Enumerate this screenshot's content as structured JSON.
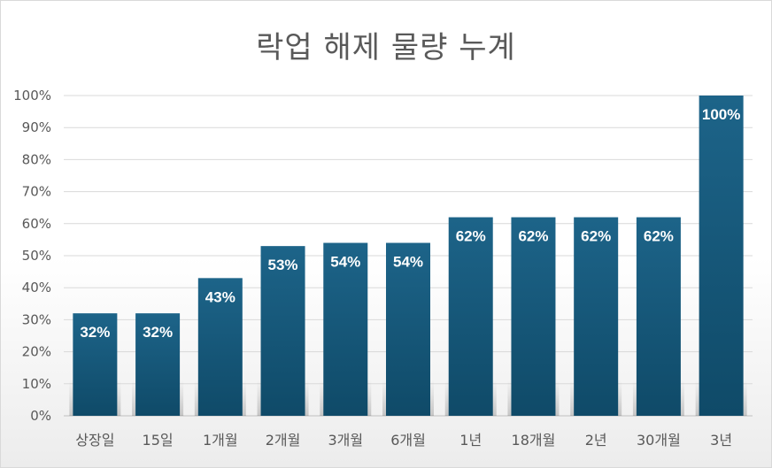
{
  "chart_data": {
    "type": "bar",
    "title": "락업 해제 물량 누계",
    "categories": [
      "상장일",
      "15일",
      "1개월",
      "2개월",
      "3개월",
      "6개월",
      "1년",
      "18개월",
      "2년",
      "30개월",
      "3년"
    ],
    "values": [
      32,
      32,
      43,
      53,
      54,
      54,
      62,
      62,
      62,
      62,
      100
    ],
    "data_labels": [
      "32%",
      "32%",
      "43%",
      "53%",
      "54%",
      "54%",
      "62%",
      "62%",
      "62%",
      "62%",
      "100%"
    ],
    "y_ticks": [
      "0%",
      "10%",
      "20%",
      "30%",
      "40%",
      "50%",
      "60%",
      "70%",
      "80%",
      "90%",
      "100%"
    ],
    "ylim": [
      0,
      100
    ],
    "grid": true,
    "legend": "none",
    "bar_color": "#1a5c80",
    "bar_color_dark": "#0f4a68"
  }
}
